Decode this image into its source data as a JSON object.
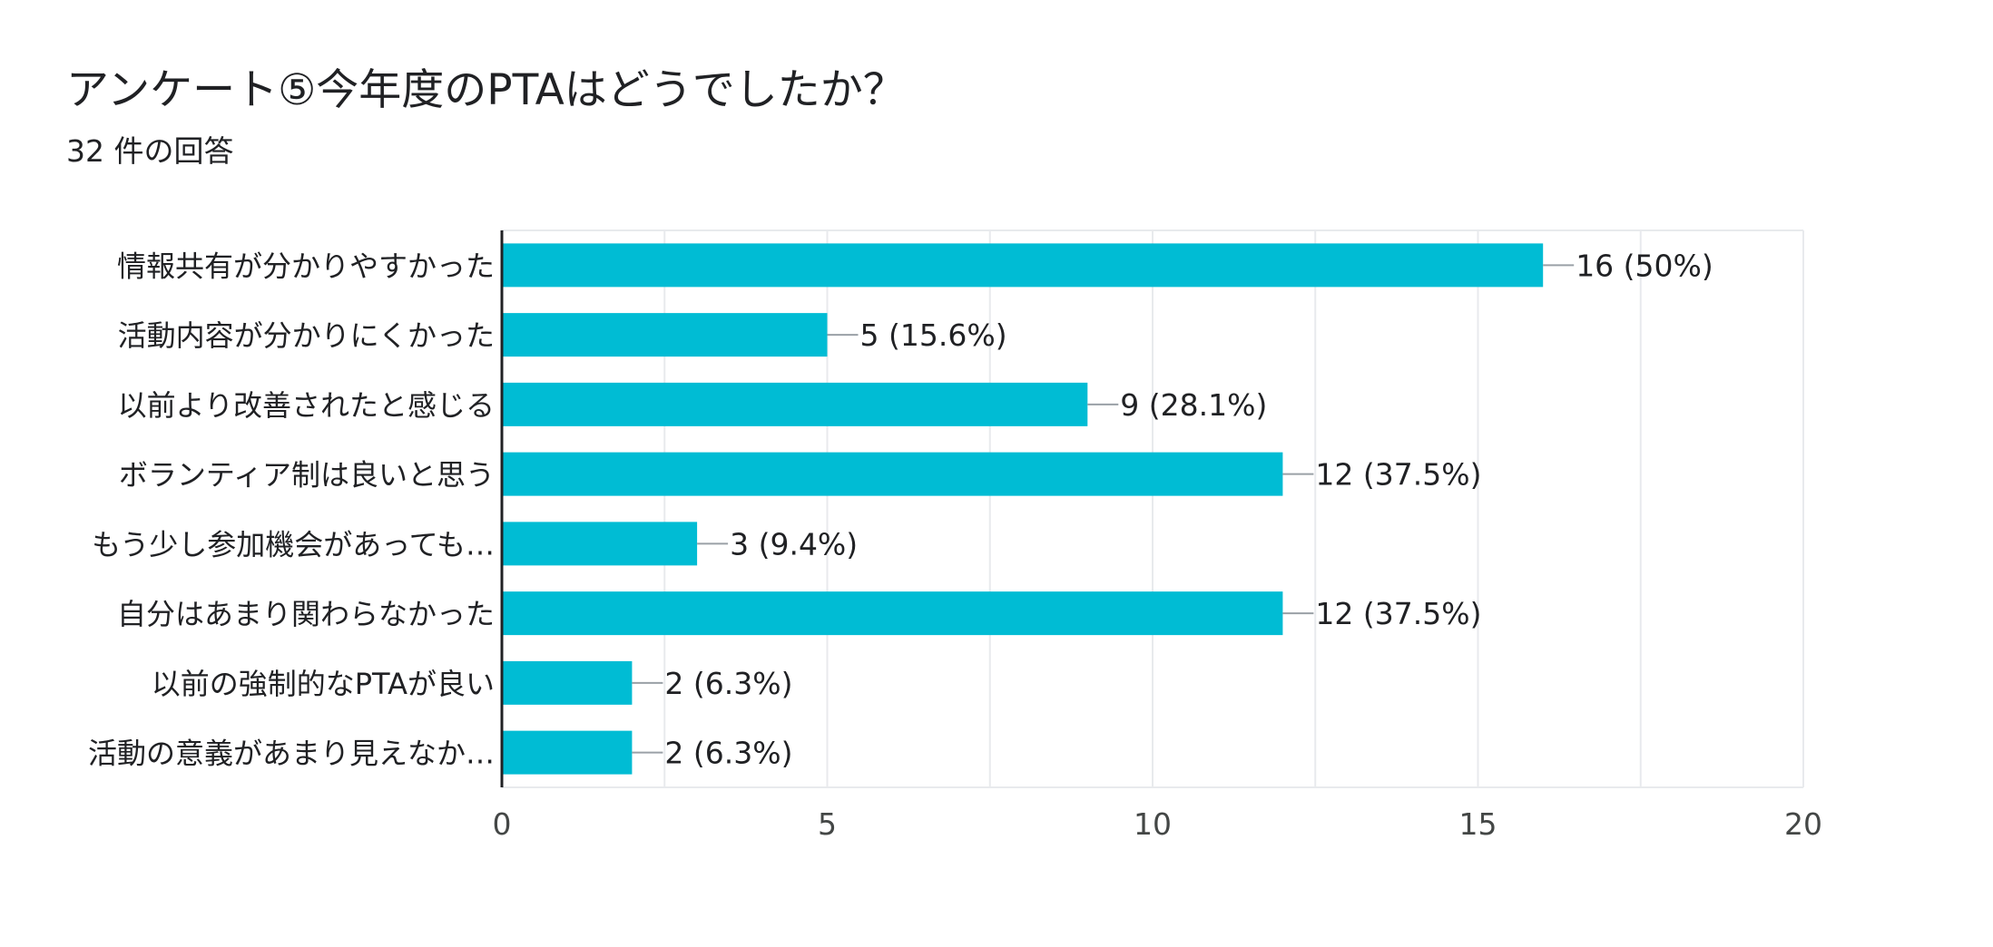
{
  "title": "アンケート⑤今年度のPTAはどうでしたか？",
  "subtitle": "32 件の回答",
  "chart_data": {
    "type": "bar",
    "orientation": "horizontal",
    "title": "アンケート⑤今年度のPTAはどうでしたか？",
    "subtitle": "32 件の回答",
    "categories": [
      "情報共有が分かりやすかった",
      "活動内容が分かりにくかった",
      "以前より改善されたと感じる",
      "ボランティア制は良いと思う",
      "もう少し参加機会があっても…",
      "自分はあまり関わらなかった",
      "以前の強制的なPTAが良い",
      "活動の意義があまり見えなか…"
    ],
    "values": [
      16,
      5,
      9,
      12,
      3,
      12,
      2,
      2
    ],
    "value_labels": [
      "16 (50%)",
      "5 (15.6%)",
      "9 (28.1%)",
      "12 (37.5%)",
      "3 (9.4%)",
      "12 (37.5%)",
      "2 (6.3%)",
      "2 (6.3%)"
    ],
    "xlim": [
      0,
      20
    ],
    "xticks": [
      0,
      5,
      10,
      15,
      20
    ],
    "xlabel": "",
    "ylabel": "",
    "grid": true,
    "bar_color": "#00BCD4",
    "grid_color": "#E8EAED",
    "axis_color": "#202124",
    "leader_color": "#9AA0A6"
  }
}
